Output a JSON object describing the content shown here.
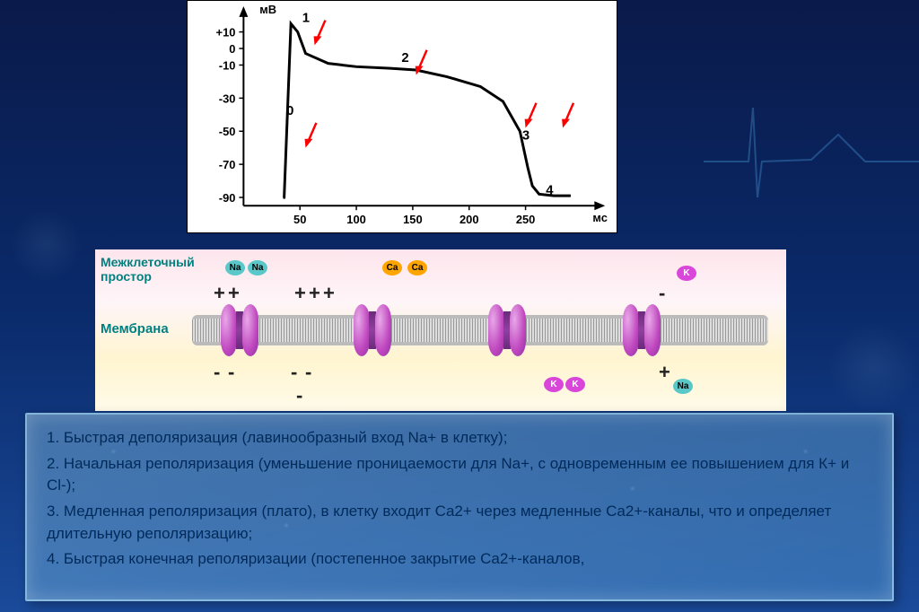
{
  "chart": {
    "y_label": "мВ",
    "x_label": "мс",
    "y_ticks": [
      "+10",
      "0",
      "-10",
      "-30",
      "-50",
      "-70",
      "-90"
    ],
    "y_tick_vals": [
      10,
      0,
      -10,
      -30,
      -50,
      -70,
      -90
    ],
    "ylim": [
      -95,
      18
    ],
    "x_ticks": [
      "50",
      "100",
      "150",
      "200",
      "250"
    ],
    "x_tick_vals": [
      50,
      100,
      150,
      200,
      250
    ],
    "xlim": [
      0,
      300
    ],
    "phase_labels": [
      "0",
      "1",
      "2",
      "3",
      "4"
    ],
    "phase_positions": [
      [
        38,
        -40
      ],
      [
        52,
        16
      ],
      [
        140,
        -8
      ],
      [
        247,
        -55
      ],
      [
        268,
        -88
      ]
    ],
    "curve": [
      [
        35,
        -90
      ],
      [
        36,
        -90
      ],
      [
        42,
        15
      ],
      [
        48,
        10
      ],
      [
        55,
        -3
      ],
      [
        75,
        -9
      ],
      [
        100,
        -11
      ],
      [
        130,
        -12
      ],
      [
        153,
        -13
      ],
      [
        180,
        -17
      ],
      [
        210,
        -23
      ],
      [
        230,
        -32
      ],
      [
        245,
        -50
      ],
      [
        252,
        -72
      ],
      [
        256,
        -83
      ],
      [
        262,
        -88
      ],
      [
        275,
        -89
      ],
      [
        290,
        -89
      ]
    ],
    "arrows": [
      [
        63,
        2
      ],
      [
        55,
        -60
      ],
      [
        153,
        -16
      ],
      [
        250,
        -48
      ],
      [
        283,
        -48
      ]
    ],
    "line_color": "#000000",
    "arrow_color": "#ff0000",
    "background": "#ffffff",
    "font_size_axis": 13,
    "font_size_phase": 15
  },
  "diagram": {
    "label_extracellular_l1": "Межклеточный",
    "label_extracellular_l2": "простор",
    "label_membrane": "Мембрана",
    "ions": {
      "na_top": [
        [
          145,
          12
        ],
        [
          170,
          12
        ]
      ],
      "ca_top": [
        [
          320,
          12
        ],
        [
          348,
          12
        ]
      ],
      "k_top": [
        [
          648,
          18
        ]
      ],
      "k_bot": [
        [
          500,
          20
        ],
        [
          524,
          20
        ]
      ],
      "na_bot": [
        [
          644,
          22
        ]
      ]
    },
    "charges_top": [
      [
        "+",
        132
      ],
      [
        "+",
        148
      ],
      [
        "+",
        222
      ],
      [
        "+",
        238
      ],
      [
        "+",
        254
      ],
      [
        "-",
        628
      ]
    ],
    "charges_bot": [
      [
        "-",
        132
      ],
      [
        "-",
        148
      ],
      [
        "-",
        218
      ],
      [
        "-",
        234
      ],
      [
        "+",
        628
      ],
      [
        "-",
        224,
        28
      ]
    ],
    "channels_x": [
      140,
      288,
      438,
      588
    ],
    "colors": {
      "na": "#5ac8c8",
      "ca": "#ffa500",
      "k": "#d946d9",
      "channel": "#c048c0"
    }
  },
  "text": {
    "p1": "1. Быстрая деполяризация (лавинообразный вход Na+ в клетку);",
    "p2": "2. Начальная реполяризация (уменьшение проницаемости для Na+, с одновременным ее повышением для К+ и Cl-);",
    "p3": "3. Медленная реполяризация (плато), в клетку входит Ca2+ через медленные Ca2+-каналы, что и определяет длительную реполяризацию;",
    "p4": "4. Быстрая конечная реполяризации (постепенное закрытие Ca2+-каналов,"
  }
}
